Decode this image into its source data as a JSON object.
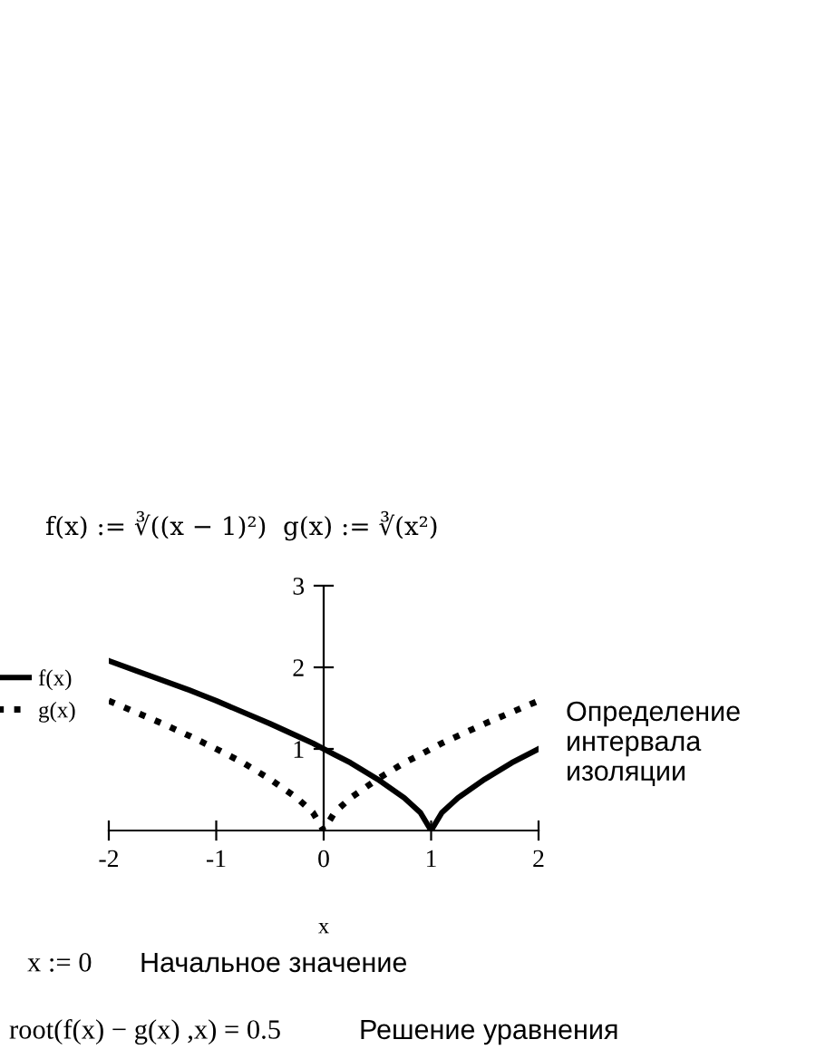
{
  "chart_data": {
    "type": "line",
    "title": "f(x) := ∛((x − 1)²)  g(x) := ∛(x²)",
    "xlabel": "x",
    "x": [
      -2,
      -1.75,
      -1.5,
      -1.25,
      -1,
      -0.75,
      -0.5,
      -0.25,
      -0.1,
      0,
      0.1,
      0.25,
      0.5,
      0.75,
      0.9,
      1,
      1.1,
      1.25,
      1.5,
      1.75,
      2
    ],
    "series": [
      {
        "name": "f(x)",
        "color": "#000000",
        "line_style": "solid",
        "values": [
          2.08,
          1.96,
          1.84,
          1.72,
          1.59,
          1.45,
          1.31,
          1.16,
          1.07,
          1.0,
          0.93,
          0.83,
          0.63,
          0.4,
          0.22,
          0,
          0.22,
          0.4,
          0.63,
          0.83,
          1.0
        ]
      },
      {
        "name": "g(x)",
        "color": "#000000",
        "line_style": "dotted",
        "values": [
          1.59,
          1.45,
          1.31,
          1.16,
          1.0,
          0.83,
          0.63,
          0.4,
          0.22,
          0,
          0.22,
          0.4,
          0.63,
          0.83,
          0.93,
          1.0,
          1.07,
          1.16,
          1.31,
          1.45,
          1.59
        ]
      }
    ],
    "xlim": [
      -2,
      2
    ],
    "xticks": [
      -2,
      -1,
      0,
      1,
      2
    ],
    "ylim": [
      0,
      3
    ],
    "yticks": [
      1,
      2,
      3
    ],
    "grid": false,
    "legend": "left",
    "marker": "none",
    "annotations": [
      "Определение интервала изоляции",
      "x := 0",
      "Начальное значение",
      "root(f(x) − g(x) ,x) = 0.5",
      "Решение уравнения"
    ]
  }
}
